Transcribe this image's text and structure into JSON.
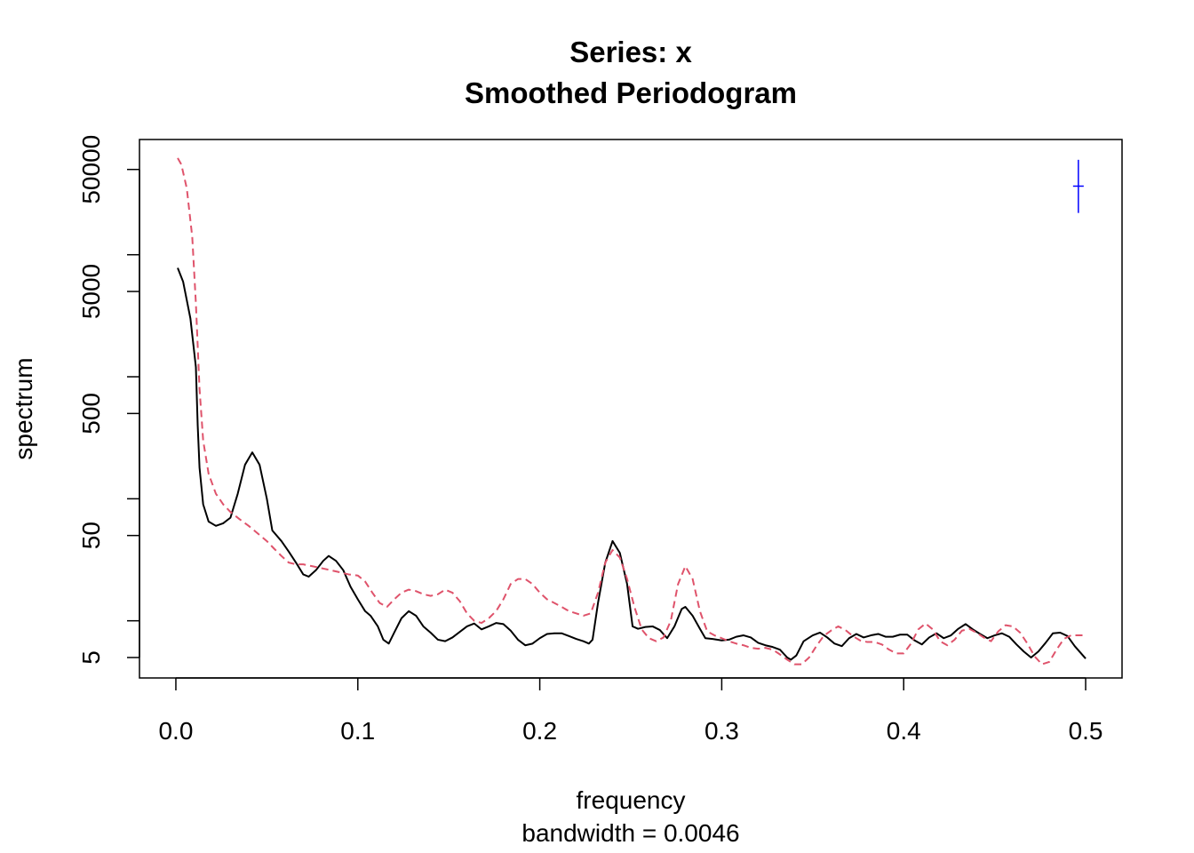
{
  "chart_data": {
    "type": "line",
    "title": "Series: x",
    "subtitle": "Smoothed Periodogram",
    "xlabel": "frequency",
    "xlabel_sub": "bandwidth = 0.0046",
    "ylabel": "spectrum",
    "y_scale": "log",
    "xlim": [
      -0.02,
      0.52
    ],
    "ylim": [
      3.4,
      88000
    ],
    "x_ticks": [
      0.0,
      0.1,
      0.2,
      0.3,
      0.4,
      0.5
    ],
    "x_tick_labels": [
      "0.0",
      "0.1",
      "0.2",
      "0.3",
      "0.4",
      "0.5"
    ],
    "y_ticks": [
      5,
      10,
      50,
      100,
      500,
      1000,
      5000,
      10000,
      50000
    ],
    "y_tick_labels": [
      "5",
      "",
      "50",
      "",
      "500",
      "",
      "5000",
      "",
      "50000"
    ],
    "grid": false,
    "series": [
      {
        "color": "#000000",
        "dash": "solid",
        "points": [
          [
            0.001,
            7800
          ],
          [
            0.004,
            6000
          ],
          [
            0.008,
            3000
          ],
          [
            0.011,
            1200
          ],
          [
            0.012,
            400
          ],
          [
            0.013,
            180
          ],
          [
            0.015,
            90
          ],
          [
            0.018,
            65
          ],
          [
            0.022,
            60
          ],
          [
            0.026,
            63
          ],
          [
            0.03,
            70
          ],
          [
            0.034,
            110
          ],
          [
            0.038,
            190
          ],
          [
            0.042,
            240
          ],
          [
            0.046,
            190
          ],
          [
            0.05,
            100
          ],
          [
            0.053,
            55
          ],
          [
            0.058,
            45
          ],
          [
            0.062,
            37
          ],
          [
            0.066,
            30
          ],
          [
            0.07,
            24
          ],
          [
            0.073,
            23
          ],
          [
            0.077,
            26
          ],
          [
            0.081,
            31
          ],
          [
            0.084,
            34
          ],
          [
            0.088,
            31
          ],
          [
            0.092,
            26
          ],
          [
            0.096,
            19
          ],
          [
            0.1,
            15
          ],
          [
            0.104,
            12
          ],
          [
            0.107,
            11
          ],
          [
            0.111,
            9
          ],
          [
            0.114,
            7
          ],
          [
            0.117,
            6.5
          ],
          [
            0.12,
            8
          ],
          [
            0.124,
            10.5
          ],
          [
            0.128,
            12
          ],
          [
            0.132,
            11
          ],
          [
            0.136,
            9
          ],
          [
            0.14,
            8
          ],
          [
            0.144,
            7
          ],
          [
            0.148,
            6.8
          ],
          [
            0.152,
            7.3
          ],
          [
            0.156,
            8.1
          ],
          [
            0.16,
            9
          ],
          [
            0.164,
            9.5
          ],
          [
            0.168,
            8.5
          ],
          [
            0.172,
            9
          ],
          [
            0.176,
            9.6
          ],
          [
            0.18,
            9.4
          ],
          [
            0.184,
            8.3
          ],
          [
            0.188,
            7
          ],
          [
            0.192,
            6.3
          ],
          [
            0.196,
            6.5
          ],
          [
            0.2,
            7.2
          ],
          [
            0.204,
            7.8
          ],
          [
            0.208,
            7.9
          ],
          [
            0.212,
            7.9
          ],
          [
            0.216,
            7.5
          ],
          [
            0.22,
            7.1
          ],
          [
            0.224,
            6.8
          ],
          [
            0.227,
            6.5
          ],
          [
            0.229,
            7
          ],
          [
            0.232,
            14
          ],
          [
            0.236,
            30
          ],
          [
            0.24,
            45
          ],
          [
            0.244,
            36
          ],
          [
            0.248,
            20
          ],
          [
            0.251,
            9
          ],
          [
            0.254,
            8.6
          ],
          [
            0.258,
            8.9
          ],
          [
            0.262,
            9
          ],
          [
            0.266,
            8.4
          ],
          [
            0.27,
            7.2
          ],
          [
            0.274,
            9
          ],
          [
            0.278,
            12.5
          ],
          [
            0.28,
            13
          ],
          [
            0.284,
            11
          ],
          [
            0.288,
            8.6
          ],
          [
            0.291,
            7.2
          ],
          [
            0.295,
            7.1
          ],
          [
            0.3,
            6.9
          ],
          [
            0.304,
            7
          ],
          [
            0.308,
            7.4
          ],
          [
            0.312,
            7.6
          ],
          [
            0.316,
            7.3
          ],
          [
            0.32,
            6.6
          ],
          [
            0.324,
            6.3
          ],
          [
            0.328,
            6.1
          ],
          [
            0.332,
            5.8
          ],
          [
            0.336,
            5
          ],
          [
            0.338,
            4.8
          ],
          [
            0.341,
            5.2
          ],
          [
            0.345,
            6.8
          ],
          [
            0.35,
            7.6
          ],
          [
            0.354,
            8
          ],
          [
            0.358,
            7.3
          ],
          [
            0.362,
            6.5
          ],
          [
            0.366,
            6.2
          ],
          [
            0.37,
            7.2
          ],
          [
            0.374,
            7.8
          ],
          [
            0.378,
            7.3
          ],
          [
            0.382,
            7.6
          ],
          [
            0.386,
            7.8
          ],
          [
            0.39,
            7.4
          ],
          [
            0.394,
            7.4
          ],
          [
            0.398,
            7.7
          ],
          [
            0.402,
            7.7
          ],
          [
            0.406,
            6.9
          ],
          [
            0.41,
            6.4
          ],
          [
            0.414,
            7.3
          ],
          [
            0.418,
            7.9
          ],
          [
            0.422,
            7.2
          ],
          [
            0.426,
            7.6
          ],
          [
            0.43,
            8.6
          ],
          [
            0.434,
            9.4
          ],
          [
            0.438,
            8.5
          ],
          [
            0.442,
            7.8
          ],
          [
            0.446,
            7.2
          ],
          [
            0.45,
            7.6
          ],
          [
            0.454,
            7.9
          ],
          [
            0.458,
            7.4
          ],
          [
            0.462,
            6.4
          ],
          [
            0.466,
            5.6
          ],
          [
            0.47,
            5
          ],
          [
            0.474,
            5.6
          ],
          [
            0.478,
            6.6
          ],
          [
            0.482,
            7.9
          ],
          [
            0.486,
            8
          ],
          [
            0.49,
            7.5
          ],
          [
            0.494,
            6.2
          ],
          [
            0.5,
            4.9
          ]
        ]
      },
      {
        "color": "#DF536B",
        "dash": "dashed",
        "points": [
          [
            0.001,
            62000
          ],
          [
            0.003,
            55000
          ],
          [
            0.006,
            35000
          ],
          [
            0.009,
            14000
          ],
          [
            0.011,
            4000
          ],
          [
            0.013,
            800
          ],
          [
            0.015,
            300
          ],
          [
            0.018,
            160
          ],
          [
            0.022,
            110
          ],
          [
            0.026,
            90
          ],
          [
            0.03,
            78
          ],
          [
            0.035,
            68
          ],
          [
            0.04,
            60
          ],
          [
            0.045,
            52
          ],
          [
            0.05,
            45
          ],
          [
            0.054,
            39
          ],
          [
            0.058,
            34
          ],
          [
            0.062,
            30
          ],
          [
            0.066,
            29
          ],
          [
            0.07,
            29
          ],
          [
            0.075,
            28
          ],
          [
            0.08,
            27
          ],
          [
            0.085,
            26
          ],
          [
            0.09,
            25
          ],
          [
            0.095,
            24
          ],
          [
            0.1,
            23.5
          ],
          [
            0.104,
            21
          ],
          [
            0.108,
            17
          ],
          [
            0.112,
            14
          ],
          [
            0.116,
            13
          ],
          [
            0.12,
            15
          ],
          [
            0.124,
            17
          ],
          [
            0.128,
            18
          ],
          [
            0.132,
            17.5
          ],
          [
            0.136,
            16.5
          ],
          [
            0.14,
            16
          ],
          [
            0.144,
            16.5
          ],
          [
            0.148,
            18
          ],
          [
            0.152,
            17
          ],
          [
            0.156,
            14.5
          ],
          [
            0.16,
            11.5
          ],
          [
            0.164,
            10
          ],
          [
            0.168,
            9.6
          ],
          [
            0.172,
            10.5
          ],
          [
            0.176,
            12
          ],
          [
            0.18,
            15
          ],
          [
            0.184,
            20
          ],
          [
            0.188,
            22
          ],
          [
            0.192,
            22
          ],
          [
            0.196,
            20
          ],
          [
            0.2,
            17
          ],
          [
            0.204,
            15
          ],
          [
            0.208,
            14
          ],
          [
            0.212,
            13
          ],
          [
            0.216,
            12
          ],
          [
            0.22,
            11.5
          ],
          [
            0.224,
            11
          ],
          [
            0.228,
            11.5
          ],
          [
            0.232,
            17
          ],
          [
            0.236,
            30
          ],
          [
            0.24,
            38
          ],
          [
            0.244,
            33
          ],
          [
            0.248,
            22
          ],
          [
            0.252,
            13
          ],
          [
            0.256,
            8.5
          ],
          [
            0.26,
            7.2
          ],
          [
            0.264,
            6.8
          ],
          [
            0.268,
            7.3
          ],
          [
            0.272,
            10
          ],
          [
            0.276,
            20
          ],
          [
            0.28,
            28
          ],
          [
            0.284,
            22
          ],
          [
            0.288,
            12
          ],
          [
            0.292,
            8.2
          ],
          [
            0.296,
            7.6
          ],
          [
            0.3,
            7.2
          ],
          [
            0.304,
            6.8
          ],
          [
            0.308,
            6.5
          ],
          [
            0.312,
            6.3
          ],
          [
            0.316,
            6
          ],
          [
            0.32,
            5.9
          ],
          [
            0.324,
            6
          ],
          [
            0.328,
            5.8
          ],
          [
            0.332,
            5.3
          ],
          [
            0.336,
            4.8
          ],
          [
            0.34,
            4.4
          ],
          [
            0.344,
            4.4
          ],
          [
            0.348,
            5
          ],
          [
            0.352,
            6.2
          ],
          [
            0.356,
            7.5
          ],
          [
            0.36,
            8.3
          ],
          [
            0.364,
            9
          ],
          [
            0.368,
            8.4
          ],
          [
            0.372,
            7.5
          ],
          [
            0.376,
            6.9
          ],
          [
            0.38,
            6.7
          ],
          [
            0.384,
            6.7
          ],
          [
            0.388,
            6.4
          ],
          [
            0.392,
            5.8
          ],
          [
            0.396,
            5.4
          ],
          [
            0.4,
            5.4
          ],
          [
            0.404,
            6.5
          ],
          [
            0.408,
            8.5
          ],
          [
            0.412,
            9.5
          ],
          [
            0.416,
            8.5
          ],
          [
            0.42,
            6.8
          ],
          [
            0.424,
            6.3
          ],
          [
            0.428,
            7
          ],
          [
            0.432,
            8.3
          ],
          [
            0.436,
            8.6
          ],
          [
            0.44,
            8
          ],
          [
            0.444,
            7.3
          ],
          [
            0.448,
            6.8
          ],
          [
            0.452,
            8.2
          ],
          [
            0.456,
            9.2
          ],
          [
            0.46,
            9
          ],
          [
            0.464,
            8
          ],
          [
            0.468,
            6.5
          ],
          [
            0.472,
            5.1
          ],
          [
            0.476,
            4.4
          ],
          [
            0.48,
            4.6
          ],
          [
            0.484,
            5.8
          ],
          [
            0.488,
            7.1
          ],
          [
            0.492,
            7.6
          ],
          [
            0.496,
            7.6
          ],
          [
            0.5,
            7.6
          ]
        ]
      }
    ],
    "ci_marker": {
      "color": "#0000FF",
      "x": 0.496,
      "y_center": 36500,
      "y_low": 22000,
      "y_high": 60000
    }
  }
}
